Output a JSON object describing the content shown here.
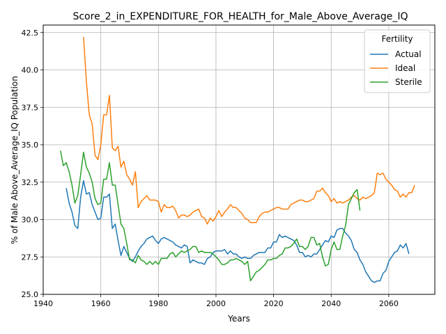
{
  "chart_data": {
    "type": "line",
    "title": "Score_2_in_EXPENDITURE_FOR_HEALTH_for_Male_Above_Average_IQ",
    "xlabel": "Years",
    "ylabel": "% of Male Above_Average_IQ Population",
    "xlim": [
      1940,
      2076
    ],
    "ylim": [
      25.0,
      43.0
    ],
    "xticks": [
      1940,
      1960,
      1980,
      2000,
      2020,
      2040,
      2060
    ],
    "yticks": [
      25.0,
      27.5,
      30.0,
      32.5,
      35.0,
      37.5,
      40.0,
      42.5
    ],
    "grid": true,
    "legend": {
      "title": "Fertility",
      "placement": "top-right"
    },
    "series": [
      {
        "name": "Actual",
        "color": "#1f77b4",
        "x_start": 1948,
        "values": [
          32.1,
          31.1,
          30.5,
          29.6,
          29.4,
          31.5,
          32.6,
          31.7,
          31.8,
          31.0,
          30.5,
          30.0,
          30.1,
          31.5,
          31.5,
          31.7,
          29.4,
          29.7,
          28.6,
          27.6,
          28.2,
          27.8,
          27.4,
          27.2,
          27.5,
          27.9,
          28.2,
          28.4,
          28.7,
          28.8,
          28.9,
          28.6,
          28.4,
          28.7,
          28.8,
          28.7,
          28.6,
          28.5,
          28.3,
          28.2,
          28.1,
          28.3,
          28.2,
          27.1,
          27.3,
          27.2,
          27.1,
          27.1,
          27.0,
          27.4,
          27.5,
          27.8,
          27.9,
          27.9,
          27.9,
          28.0,
          27.7,
          27.9,
          27.7,
          27.7,
          27.5,
          27.4,
          27.5,
          27.4,
          27.4,
          27.6,
          27.7,
          27.8,
          27.8,
          27.8,
          28.1,
          28.1,
          28.5,
          28.5,
          29.0,
          28.8,
          28.9,
          28.8,
          28.7,
          28.6,
          28.3,
          27.8,
          27.8,
          27.5,
          27.6,
          27.5,
          27.7,
          27.7,
          28.0,
          28.3,
          28.6,
          28.5,
          28.9,
          28.8,
          29.3,
          29.4,
          29.4,
          29.1,
          28.9,
          28.6,
          28.0,
          27.8,
          27.3,
          27.0,
          26.5,
          26.2,
          25.9,
          25.8,
          25.9,
          25.9,
          26.4,
          26.6,
          27.2,
          27.5,
          27.8,
          27.9,
          28.3,
          28.1,
          28.4,
          27.7
        ]
      },
      {
        "name": "Ideal",
        "color": "#ff7f0e",
        "x_start": 1954,
        "values": [
          42.2,
          39.2,
          37.0,
          36.4,
          34.3,
          34.0,
          35.0,
          37.0,
          37.0,
          38.3,
          34.8,
          34.6,
          34.9,
          33.5,
          33.9,
          33.0,
          32.7,
          32.3,
          33.2,
          30.8,
          31.2,
          31.4,
          31.6,
          31.3,
          31.3,
          31.3,
          31.2,
          30.5,
          31.0,
          30.8,
          30.8,
          30.9,
          30.6,
          30.1,
          30.3,
          30.3,
          30.2,
          30.3,
          30.5,
          30.6,
          30.7,
          30.2,
          30.1,
          29.7,
          30.1,
          29.9,
          30.2,
          30.6,
          30.2,
          30.5,
          30.7,
          31.0,
          30.8,
          30.8,
          30.6,
          30.4,
          30.1,
          30.0,
          29.8,
          29.8,
          29.8,
          30.2,
          30.4,
          30.5,
          30.5,
          30.6,
          30.7,
          30.8,
          30.8,
          30.7,
          30.7,
          30.7,
          31.0,
          31.1,
          31.2,
          31.3,
          31.3,
          31.2,
          31.2,
          31.3,
          31.4,
          31.9,
          31.9,
          32.1,
          31.8,
          31.6,
          31.2,
          31.4,
          31.1,
          31.2,
          31.1,
          31.2,
          31.3,
          31.5,
          31.6,
          31.4,
          31.3,
          31.5,
          31.4,
          31.5,
          31.6,
          31.8,
          33.1,
          33.0,
          33.1,
          32.7,
          32.5,
          32.3,
          32.0,
          31.9,
          31.5,
          31.7,
          31.5,
          31.8,
          31.8,
          32.3
        ]
      },
      {
        "name": "Sterile",
        "color": "#2ca02c",
        "x_start": 1946,
        "values": [
          34.6,
          33.6,
          33.8,
          33.2,
          32.3,
          31.1,
          31.6,
          33.0,
          34.5,
          33.5,
          33.1,
          32.5,
          31.4,
          31.0,
          31.1,
          32.7,
          32.7,
          33.8,
          32.3,
          32.3,
          31.0,
          29.7,
          29.4,
          28.4,
          27.3,
          27.3,
          27.1,
          27.6,
          27.3,
          27.2,
          27.0,
          27.2,
          27.0,
          27.2,
          27.0,
          27.4,
          27.4,
          27.4,
          27.7,
          27.8,
          27.5,
          27.7,
          27.9,
          27.8,
          27.9,
          28.0,
          28.2,
          28.2,
          27.8,
          27.9,
          27.8,
          27.8,
          27.8,
          27.7,
          27.5,
          27.3,
          27.0,
          27.0,
          27.1,
          27.3,
          27.3,
          27.4,
          27.3,
          27.2,
          27.0,
          27.2,
          25.9,
          26.2,
          26.5,
          26.6,
          26.8,
          27.0,
          27.3,
          27.3,
          27.4,
          27.4,
          27.6,
          27.7,
          28.1,
          28.1,
          28.2,
          28.4,
          28.7,
          28.2,
          28.2,
          28.0,
          28.2,
          28.8,
          28.8,
          28.3,
          28.4,
          27.5,
          26.9,
          27.0,
          28.0,
          28.5,
          28.0,
          28.0,
          28.9,
          29.6,
          31.0,
          31.4,
          31.8,
          32.0,
          30.6
        ]
      }
    ]
  }
}
